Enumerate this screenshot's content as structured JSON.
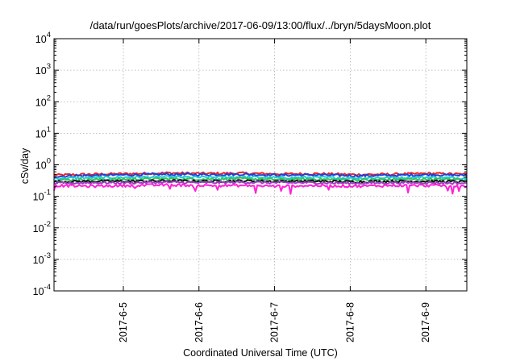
{
  "chart_data": {
    "type": "line",
    "title": "/data/run/goesPlots/archive/2017-06-09/13:00/flux/../bryn/5daysMoon.plot",
    "xlabel": "Coordinated Universal Time (UTC)",
    "ylabel": "cSv/day",
    "yscale": "log",
    "ylim": [
      0.0001,
      10000
    ],
    "xlim": [
      "2017-06-04 02:00",
      "2017-06-09 13:00"
    ],
    "grid": true,
    "y_ticks": [
      {
        "base": "10",
        "exp": "-4"
      },
      {
        "base": "10",
        "exp": "-3"
      },
      {
        "base": "10",
        "exp": "-2"
      },
      {
        "base": "10",
        "exp": "-1"
      },
      {
        "base": "10",
        "exp": "0"
      },
      {
        "base": "10",
        "exp": "1"
      },
      {
        "base": "10",
        "exp": "2"
      },
      {
        "base": "10",
        "exp": "3"
      },
      {
        "base": "10",
        "exp": "4"
      }
    ],
    "x_ticks": [
      "2017-6-5",
      "2017-6-6",
      "2017-6-7",
      "2017-6-8",
      "2017-6-9"
    ],
    "series": [
      {
        "color": "#e8262b",
        "values": [
          0.47,
          0.5,
          0.52,
          0.55,
          0.53,
          0.54,
          0.51,
          0.52,
          0.49,
          0.5,
          0.53,
          0.5
        ]
      },
      {
        "color": "#1f3fd6",
        "values": [
          0.43,
          0.46,
          0.48,
          0.5,
          0.49,
          0.5,
          0.47,
          0.48,
          0.45,
          0.46,
          0.49,
          0.46
        ]
      },
      {
        "color": "#25c9d8",
        "values": [
          0.37,
          0.39,
          0.4,
          0.41,
          0.4,
          0.41,
          0.39,
          0.4,
          0.38,
          0.39,
          0.4,
          0.38
        ]
      },
      {
        "color": "#2fc45a",
        "values": [
          0.33,
          0.34,
          0.35,
          0.36,
          0.35,
          0.36,
          0.34,
          0.35,
          0.33,
          0.34,
          0.35,
          0.34
        ]
      },
      {
        "color": "#111111",
        "values": [
          0.29,
          0.3,
          0.3,
          0.31,
          0.3,
          0.31,
          0.3,
          0.3,
          0.29,
          0.3,
          0.3,
          0.29
        ]
      },
      {
        "color": "#9b3fc0",
        "values": [
          0.26,
          0.27,
          0.27,
          0.28,
          0.27,
          0.28,
          0.27,
          0.27,
          0.26,
          0.27,
          0.27,
          0.26
        ]
      },
      {
        "color": "#ff22d8",
        "values": [
          0.22,
          0.21,
          0.22,
          0.23,
          0.22,
          0.22,
          0.21,
          0.22,
          0.21,
          0.22,
          0.22,
          0.21
        ]
      }
    ]
  }
}
